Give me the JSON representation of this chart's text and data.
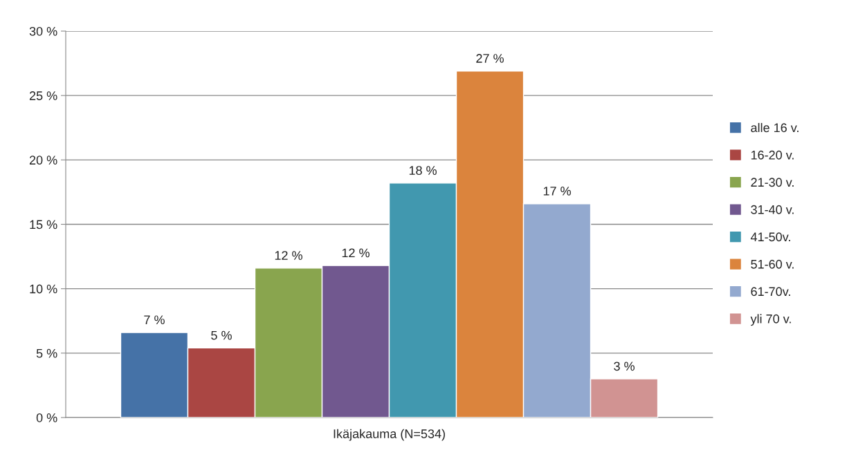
{
  "chart_data": {
    "type": "bar",
    "categories": [
      "Ikäjakauma (N=534)"
    ],
    "series": [
      {
        "name": "alle 16 v.",
        "color": "#4572a7",
        "values": [
          6.6
        ],
        "value_labels": [
          "7 %"
        ]
      },
      {
        "name": "16-20 v.",
        "color": "#aa4643",
        "values": [
          5.4
        ],
        "value_labels": [
          "5 %"
        ]
      },
      {
        "name": "21-30 v.",
        "color": "#89a54e",
        "values": [
          11.6
        ],
        "value_labels": [
          "12 %"
        ]
      },
      {
        "name": "31-40 v.",
        "color": "#71588f",
        "values": [
          11.8
        ],
        "value_labels": [
          "12 %"
        ]
      },
      {
        "name": "41-50v.",
        "color": "#4198af",
        "values": [
          18.2
        ],
        "value_labels": [
          "18 %"
        ]
      },
      {
        "name": "51-60 v.",
        "color": "#db843d",
        "values": [
          26.9
        ],
        "value_labels": [
          "27 %"
        ]
      },
      {
        "name": "61-70v.",
        "color": "#93a9cf",
        "values": [
          16.6
        ],
        "value_labels": [
          "17 %"
        ]
      },
      {
        "name": "yli 70 v.",
        "color": "#d19392",
        "values": [
          3.0
        ],
        "value_labels": [
          "3 %"
        ]
      }
    ],
    "ylim": [
      0,
      30
    ],
    "yticks": [
      {
        "value": 0,
        "label": "0 %"
      },
      {
        "value": 5,
        "label": "5 %"
      },
      {
        "value": 10,
        "label": "10 %"
      },
      {
        "value": 15,
        "label": "15 %"
      },
      {
        "value": 20,
        "label": "20 %"
      },
      {
        "value": 25,
        "label": "25 %"
      },
      {
        "value": 30,
        "label": "30 %"
      }
    ],
    "grid": "y",
    "legend": "right"
  }
}
